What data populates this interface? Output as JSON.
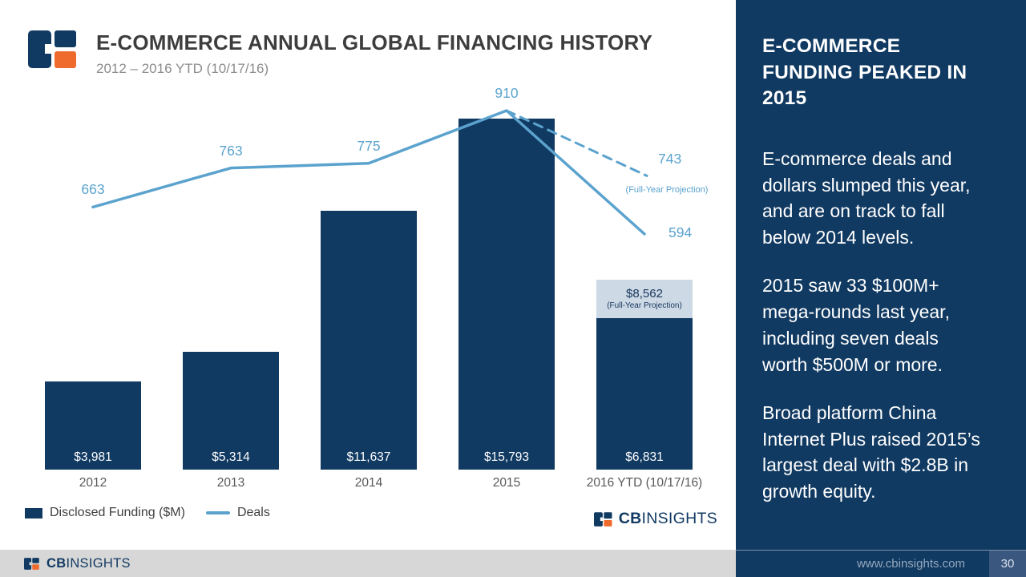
{
  "header": {
    "title": "E-COMMERCE ANNUAL GLOBAL FINANCING HISTORY",
    "subtitle": "2012 – 2016 YTD (10/17/16)"
  },
  "chart_data": {
    "type": "combo",
    "categories": [
      "2012",
      "2013",
      "2014",
      "2015",
      "2016 YTD (10/17/16)"
    ],
    "series": [
      {
        "name": "Disclosed Funding ($M)",
        "type": "bar",
        "values": [
          3981,
          5314,
          11637,
          15793,
          6831
        ],
        "labels": [
          "$3,981",
          "$5,314",
          "$11,637",
          "$15,793",
          "$6,831"
        ],
        "color": "#113A62"
      },
      {
        "name": "Deals",
        "type": "line",
        "values": [
          663,
          763,
          775,
          910,
          594
        ],
        "labels": [
          "663",
          "763",
          "775",
          "910",
          "594"
        ],
        "color": "#5BA3CE"
      }
    ],
    "projections": {
      "funding": {
        "value": 8562,
        "label": "$8,562",
        "note": "(Full-Year Projection)"
      },
      "deals": {
        "value": 743,
        "label": "743",
        "note": "(Full-Year Projection)"
      }
    },
    "ylim": [
      0,
      17500
    ],
    "grid": false,
    "legend_position": "bottom-left"
  },
  "legend": {
    "funding": "Disclosed Funding ($M)",
    "deals": "Deals"
  },
  "sidebar": {
    "heading": "E-COMMERCE FUNDING PEAKED IN 2015",
    "paragraphs": [
      "E-commerce deals and dollars slumped this year, and are on track to fall below 2014 levels.",
      "2015 saw 33 $100M+ mega-rounds last year, including seven deals worth $500M or more.",
      "Broad platform China Internet Plus raised 2015’s largest deal with $2.8B in growth equity."
    ]
  },
  "branding": {
    "cb": "CB",
    "insights": "INSIGHTS"
  },
  "footer": {
    "url": "www.cbinsights.com",
    "page": "30"
  },
  "colors": {
    "navy": "#113A62",
    "line_blue": "#5BA3CE",
    "orange": "#EE6B2D",
    "projection_cap": "#CDD9E5",
    "cap_text": "#16365C"
  }
}
